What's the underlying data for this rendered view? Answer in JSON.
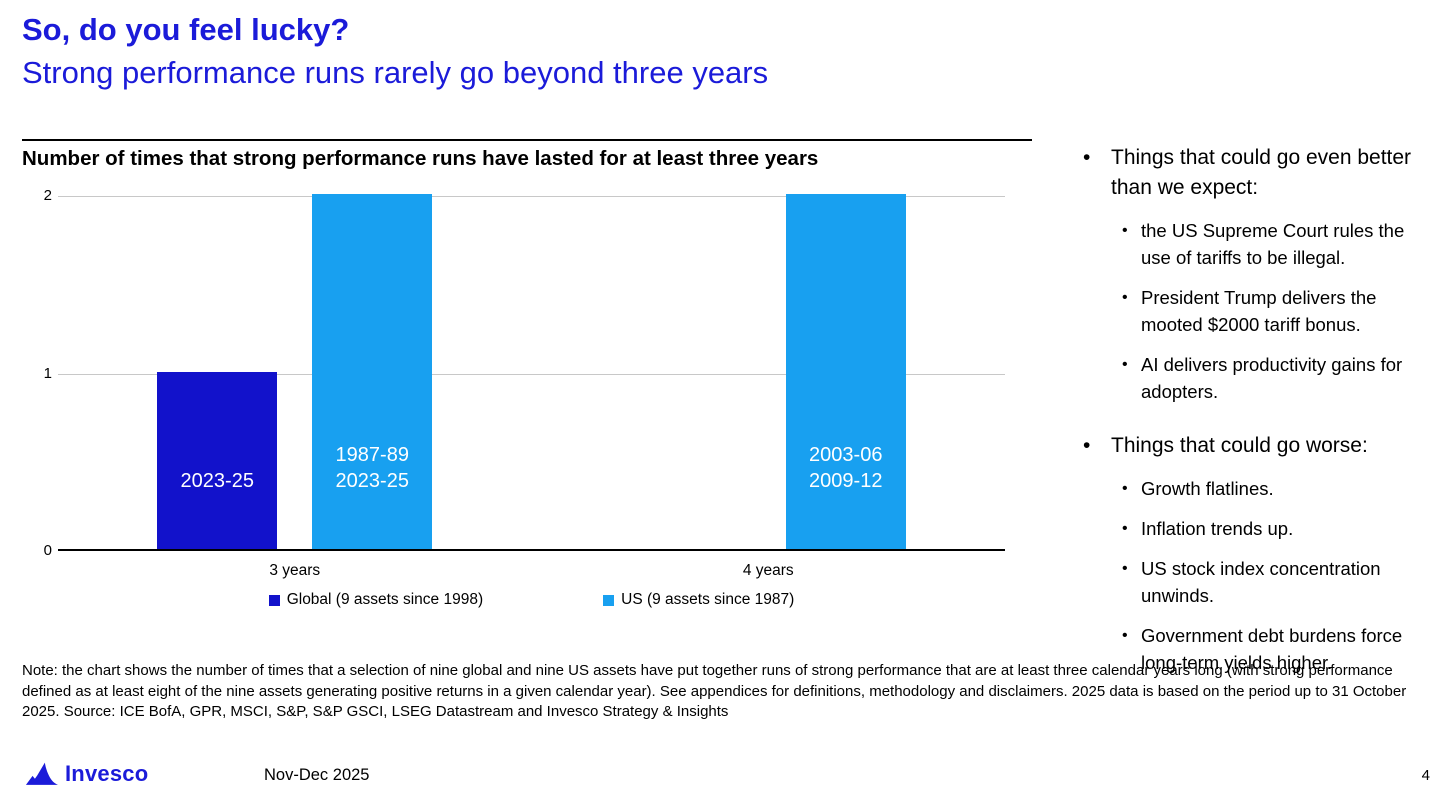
{
  "slide": {
    "title": "So, do you feel lucky?",
    "subtitle": "Strong performance runs rarely go beyond three years"
  },
  "chart_data": {
    "type": "bar",
    "title": "Number of times that strong performance runs have lasted for at least three years",
    "categories": [
      "3 years",
      "4 years"
    ],
    "series": [
      {
        "name": "Global (9 assets since 1998)",
        "color": "#1212cb",
        "values": [
          1,
          0
        ],
        "bar_labels": [
          [
            "2023-25"
          ],
          []
        ]
      },
      {
        "name": "US (9 assets since 1987)",
        "color": "#18a0f0",
        "values": [
          2,
          2
        ],
        "bar_labels": [
          [
            "1987-89",
            "2023-25"
          ],
          [
            "2003-06",
            "2009-12"
          ]
        ]
      }
    ],
    "ylim": [
      0,
      2
    ],
    "yticks": [
      0,
      1,
      2
    ],
    "grid": "horizontal",
    "legend_position": "bottom"
  },
  "right_panel": {
    "groups": [
      {
        "title": "Things that could go even better than we expect:",
        "items": [
          "the US Supreme Court rules the use of tariffs to be illegal.",
          "President Trump delivers the mooted $2000 tariff bonus.",
          "AI delivers productivity gains for adopters."
        ]
      },
      {
        "title": "Things that could go worse:",
        "items": [
          "Growth flatlines.",
          "Inflation trends up.",
          "US stock index concentration unwinds.",
          "Government debt burdens force long-term yields higher."
        ]
      }
    ]
  },
  "note": "Note: the chart shows the number of times that a selection of nine global and nine US assets have put together runs of strong performance that are at least three calendar years long (with strong performance defined as at least eight of the nine assets generating positive returns in a given calendar year). See appendices for definitions, methodology and disclaimers. 2025 data is based on the period up to 31 October 2025. Source: ICE BofA, GPR, MSCI, S&P, S&P GSCI, LSEG Datastream and Invesco Strategy & Insights",
  "footer": {
    "brand": "Invesco",
    "date": "Nov-Dec 2025",
    "page": "4"
  },
  "colors": {
    "title_blue": "#1b1bd9",
    "global_bar": "#1212cb",
    "us_bar": "#18a0f0",
    "gridline": "#c8c8c8"
  }
}
